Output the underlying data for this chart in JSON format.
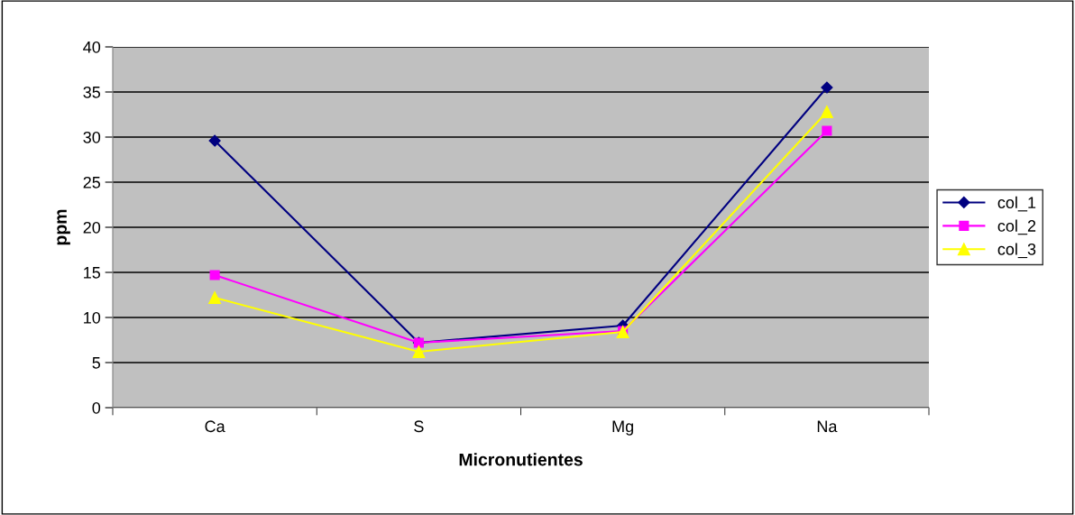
{
  "chart_data": {
    "type": "line",
    "xlabel": "Micronutientes",
    "ylabel": "ppm",
    "categories": [
      "Ca",
      "S",
      "Mg",
      "Na"
    ],
    "series": [
      {
        "name": "col_1",
        "color": "#000080",
        "marker": "diamond",
        "values": [
          29.6,
          7.2,
          9.1,
          35.5
        ]
      },
      {
        "name": "col_2",
        "color": "#ff00ff",
        "marker": "square",
        "values": [
          14.7,
          7.2,
          8.5,
          30.7
        ]
      },
      {
        "name": "col_3",
        "color": "#ffff00",
        "marker": "triangle",
        "values": [
          12.2,
          6.2,
          8.4,
          32.8
        ]
      }
    ],
    "ylim": [
      0,
      40
    ],
    "yticks": [
      0,
      5,
      10,
      15,
      20,
      25,
      30,
      35,
      40
    ],
    "grid": "y",
    "legend": "right"
  }
}
